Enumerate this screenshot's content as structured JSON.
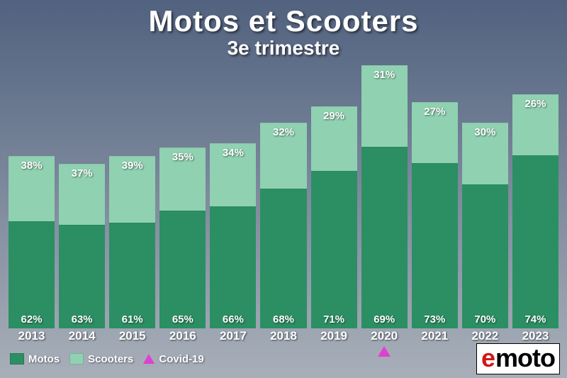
{
  "title": "Motos et Scooters",
  "subtitle": "3e trimestre",
  "title_fontsize": 42,
  "subtitle_fontsize": 28,
  "background": {
    "top": "#51627f",
    "bottom": "#a8afb9"
  },
  "chart": {
    "type": "stacked-bar",
    "series": [
      "Motos",
      "Scooters"
    ],
    "colors": {
      "Motos": "#2b8f63",
      "Scooters": "#8fd1b1"
    },
    "label_fontsize": 15,
    "axis_fontsize": 17,
    "max_total": 64,
    "bars": [
      {
        "year": "2013",
        "motos_pct": "62%",
        "scooters_pct": "38%",
        "total": 42
      },
      {
        "year": "2014",
        "motos_pct": "63%",
        "scooters_pct": "37%",
        "total": 40
      },
      {
        "year": "2015",
        "motos_pct": "61%",
        "scooters_pct": "39%",
        "total": 42
      },
      {
        "year": "2016",
        "motos_pct": "65%",
        "scooters_pct": "35%",
        "total": 44
      },
      {
        "year": "2017",
        "motos_pct": "66%",
        "scooters_pct": "34%",
        "total": 45
      },
      {
        "year": "2018",
        "motos_pct": "68%",
        "scooters_pct": "32%",
        "total": 50
      },
      {
        "year": "2019",
        "motos_pct": "71%",
        "scooters_pct": "29%",
        "total": 54
      },
      {
        "year": "2020",
        "motos_pct": "69%",
        "scooters_pct": "31%",
        "total": 64
      },
      {
        "year": "2021",
        "motos_pct": "73%",
        "scooters_pct": "27%",
        "total": 55
      },
      {
        "year": "2022",
        "motos_pct": "70%",
        "scooters_pct": "30%",
        "total": 50
      },
      {
        "year": "2023",
        "motos_pct": "74%",
        "scooters_pct": "26%",
        "total": 57
      }
    ],
    "marker": {
      "year": "2020",
      "color": "#e040d0",
      "label": "Covid-19"
    }
  },
  "legend": [
    {
      "type": "swatch",
      "label": "Motos",
      "color_key": "Motos"
    },
    {
      "type": "swatch",
      "label": "Scooters",
      "color_key": "Scooters"
    },
    {
      "type": "triangle",
      "label": "Covid-19"
    }
  ],
  "logo": {
    "prefix": "e",
    "rest": "moto",
    "prefix_color": "#d01818",
    "rest_color": "#000000",
    "bg": "#ffffff"
  }
}
